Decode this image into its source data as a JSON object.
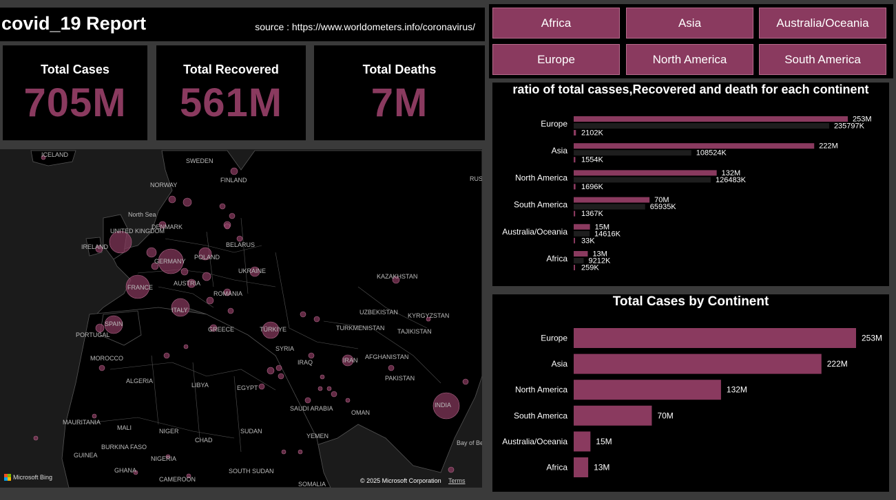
{
  "header": {
    "title": "covid_19 Report",
    "source": "source : https://www.worldometers.info/coronavirus/"
  },
  "kpis": {
    "cases": {
      "label": "Total Cases",
      "value": "705M"
    },
    "recovered": {
      "label": "Total Recovered",
      "value": "561M"
    },
    "deaths": {
      "label": "Total Deaths",
      "value": "7M"
    }
  },
  "slicer": {
    "items": [
      "Africa",
      "Asia",
      "Australia/Oceania",
      "Europe",
      "North America",
      "South America"
    ]
  },
  "map": {
    "labels": [
      "ICELAND",
      "SWEDEN",
      "NORWAY",
      "FINLAND",
      "RUS",
      "North Sea",
      "UNITED KINGDOM",
      "IRELAND",
      "DENMARK",
      "BELARUS",
      "POLAND",
      "GERMANY",
      "UKRAINE",
      "FRANCE",
      "AUSTRIA",
      "ROMANIA",
      "ITALY",
      "KAZAKHSTAN",
      "SPAIN",
      "PORTUGAL",
      "TÜRKIYE",
      "GREECE",
      "UZBEKISTAN",
      "KYRGYZSTAN",
      "TURKMENISTAN",
      "TAJIKISTAN",
      "SYRIA",
      "IRAQ",
      "IRAN",
      "AFGHANISTAN",
      "MOROCCO",
      "PAKISTAN",
      "ALGERIA",
      "LIBYA",
      "EGYPT",
      "SAUDI ARABIA",
      "OMAN",
      "INDIA",
      "MAURITANIA",
      "MALI",
      "NIGER",
      "CHAD",
      "SUDAN",
      "YEMEN",
      "Bay of Bengal",
      "BURKINA FASO",
      "GUINEA",
      "NIGERIA",
      "GHANA",
      "CAMEROON",
      "SOUTH SUDAN",
      "SOMALIA"
    ],
    "provider": "Microsoft Bing",
    "copyright": "© 2025 Microsoft Corporation",
    "terms": "Terms",
    "colors": {
      "bubble": "#8a3a5f",
      "land": "#000000",
      "water": "#1b1b1b"
    }
  },
  "chart_data": [
    {
      "type": "bar",
      "title": "ratio of total casses,Recovered and death for each continent",
      "categories": [
        "Europe",
        "Asia",
        "North America",
        "South America",
        "Australia/Oceania",
        "Africa"
      ],
      "series": [
        {
          "values": [
            253000000,
            222000000,
            132000000,
            70000000,
            15000000,
            13000000
          ],
          "labels": [
            "253M",
            "222M",
            "132M",
            "70M",
            "15M",
            "13M"
          ],
          "color": "#8a3a5f"
        },
        {
          "values": [
            235797000,
            108524000,
            126483000,
            65935000,
            14616000,
            9212000
          ],
          "labels": [
            "235797K",
            "108524K",
            "126483K",
            "65935K",
            "14616K",
            "9212K"
          ],
          "color": "#1e1e1e"
        },
        {
          "values": [
            2102000,
            1554000,
            1696000,
            1367000,
            33000,
            259000
          ],
          "labels": [
            "2102K",
            "1554K",
            "1696K",
            "1367K",
            "33K",
            "259K"
          ],
          "color": "#8a3a5f"
        }
      ],
      "orientation": "horizontal"
    },
    {
      "type": "bar",
      "title": "Total Cases by Continent",
      "categories": [
        "Europe",
        "Asia",
        "North America",
        "South America",
        "Australia/Oceania",
        "Africa"
      ],
      "values": [
        253000000,
        222000000,
        132000000,
        70000000,
        15000000,
        13000000
      ],
      "labels": [
        "253M",
        "222M",
        "132M",
        "70M",
        "15M",
        "13M"
      ],
      "color": "#8a3a5f",
      "orientation": "horizontal"
    }
  ]
}
